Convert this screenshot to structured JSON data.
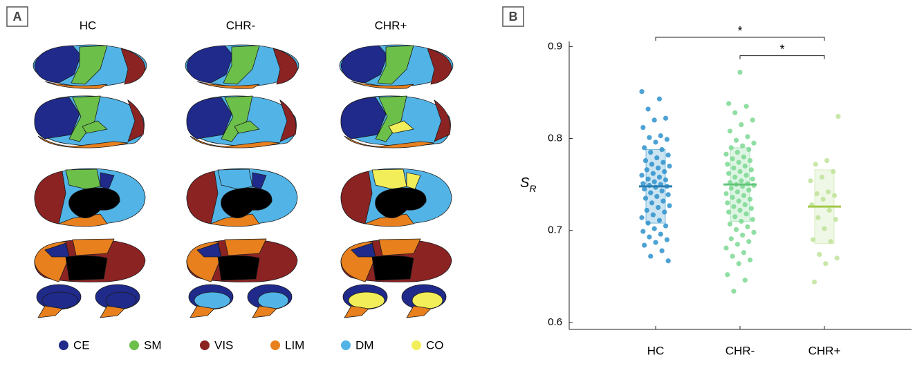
{
  "panel_a": {
    "label": "A",
    "columns": [
      "HC",
      "CHR-",
      "CHR+"
    ],
    "legend": [
      {
        "name": "CE",
        "color": "#1f2a8a"
      },
      {
        "name": "SM",
        "color": "#6cc04a"
      },
      {
        "name": "VIS",
        "color": "#8b2323"
      },
      {
        "name": "LIM",
        "color": "#e8801e"
      },
      {
        "name": "DM",
        "color": "#52b4e6"
      },
      {
        "name": "CO",
        "color": "#f2ee5a"
      }
    ]
  },
  "chart_data": {
    "type": "strip",
    "label": "B",
    "ylabel": "S",
    "ylabel_sub": "R",
    "ylim": [
      0.6,
      0.91
    ],
    "yticks": [
      0.6,
      0.7,
      0.8,
      0.9
    ],
    "series": [
      {
        "name": "HC",
        "color": "#2e92cc",
        "mean_color": "#2a7db3",
        "mean": 0.748,
        "box": [
          0.708,
          0.788
        ],
        "values": [
          0.851,
          0.843,
          0.832,
          0.822,
          0.82,
          0.812,
          0.803,
          0.801,
          0.799,
          0.796,
          0.79,
          0.788,
          0.785,
          0.782,
          0.779,
          0.776,
          0.774,
          0.772,
          0.77,
          0.768,
          0.766,
          0.764,
          0.762,
          0.76,
          0.758,
          0.756,
          0.755,
          0.753,
          0.751,
          0.75,
          0.749,
          0.748,
          0.747,
          0.745,
          0.743,
          0.741,
          0.739,
          0.737,
          0.735,
          0.732,
          0.73,
          0.727,
          0.725,
          0.722,
          0.72,
          0.717,
          0.714,
          0.711,
          0.708,
          0.705,
          0.702,
          0.699,
          0.696,
          0.693,
          0.69,
          0.687,
          0.684,
          0.678,
          0.672,
          0.667
        ]
      },
      {
        "name": "CHR-",
        "color": "#7dd893",
        "mean_color": "#63c47a",
        "mean": 0.75,
        "box": [
          0.71,
          0.79
        ],
        "values": [
          0.872,
          0.838,
          0.835,
          0.828,
          0.82,
          0.815,
          0.808,
          0.802,
          0.798,
          0.795,
          0.792,
          0.79,
          0.788,
          0.785,
          0.783,
          0.78,
          0.778,
          0.776,
          0.774,
          0.772,
          0.77,
          0.768,
          0.766,
          0.764,
          0.762,
          0.76,
          0.758,
          0.756,
          0.754,
          0.752,
          0.751,
          0.75,
          0.749,
          0.748,
          0.746,
          0.744,
          0.742,
          0.74,
          0.738,
          0.736,
          0.734,
          0.732,
          0.73,
          0.728,
          0.726,
          0.724,
          0.722,
          0.72,
          0.718,
          0.715,
          0.712,
          0.71,
          0.707,
          0.704,
          0.701,
          0.698,
          0.695,
          0.691,
          0.688,
          0.685,
          0.681,
          0.676,
          0.672,
          0.668,
          0.664,
          0.652,
          0.646,
          0.634
        ]
      },
      {
        "name": "CHR+",
        "color": "#bfe39a",
        "mean_color": "#a2c94a",
        "mean": 0.726,
        "box": [
          0.686,
          0.766
        ],
        "values": [
          0.824,
          0.776,
          0.772,
          0.764,
          0.758,
          0.754,
          0.742,
          0.74,
          0.738,
          0.734,
          0.728,
          0.722,
          0.714,
          0.712,
          0.702,
          0.69,
          0.688,
          0.674,
          0.67,
          0.664,
          0.644
        ]
      }
    ],
    "brackets": [
      {
        "from": 0,
        "to": 2,
        "y": 0.91,
        "text": "*"
      },
      {
        "from": 1,
        "to": 2,
        "y": 0.89,
        "text": "*"
      }
    ]
  }
}
